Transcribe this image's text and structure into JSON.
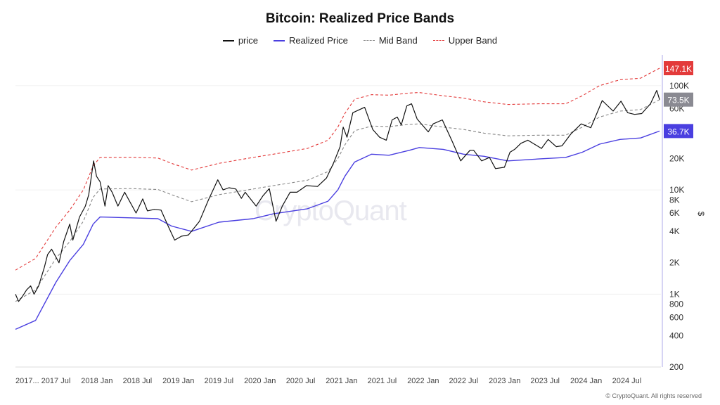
{
  "colors": {
    "price": "#111111",
    "realized": "#4a3fe0",
    "mid": "#888888",
    "upper": "#e33a3a",
    "axis_line": "#c9c6f0",
    "grid": "#f0f0f0"
  },
  "labels": {
    "price_tag": "73.5K",
    "upper_tag": "147.1K",
    "realized_tag": "36.7K",
    "y_unit": "$",
    "watermark": "CryptoQuant",
    "copyright": "© CryptoQuant. All rights reserved"
  },
  "chart_data": {
    "type": "line",
    "title": "Bitcoin: Realized Price Bands",
    "xlabel": "",
    "ylabel": "$",
    "y_scale": "log",
    "ylim": [
      200,
      180000
    ],
    "xlim": [
      "2017-01-01",
      "2024-12-01"
    ],
    "x_tick_labels": [
      "2017...",
      "2017 Jul",
      "2018 Jan",
      "2018 Jul",
      "2019 Jan",
      "2019 Jul",
      "2020 Jan",
      "2020 Jul",
      "2021 Jan",
      "2021 Jul",
      "2022 Jan",
      "2022 Jul",
      "2023 Jan",
      "2023 Jul",
      "2024 Jan",
      "2024 Jul"
    ],
    "y_ticks": [
      {
        "value": 200,
        "label": "200"
      },
      {
        "value": 400,
        "label": "400"
      },
      {
        "value": 600,
        "label": "600"
      },
      {
        "value": 800,
        "label": "800"
      },
      {
        "value": 1000,
        "label": "1K"
      },
      {
        "value": 2000,
        "label": "2K"
      },
      {
        "value": 4000,
        "label": "4K"
      },
      {
        "value": 6000,
        "label": "6K"
      },
      {
        "value": 8000,
        "label": "8K"
      },
      {
        "value": 10000,
        "label": "10K"
      },
      {
        "value": 20000,
        "label": "20K"
      },
      {
        "value": 60000,
        "label": "60K"
      },
      {
        "value": 100000,
        "label": "100K"
      }
    ],
    "legend_position": "top",
    "series": [
      {
        "name": "price",
        "style": "solid",
        "points": [
          [
            "2017-01-01",
            1000
          ],
          [
            "2017-01-15",
            850
          ],
          [
            "2017-02-01",
            950
          ],
          [
            "2017-02-20",
            1100
          ],
          [
            "2017-03-10",
            1200
          ],
          [
            "2017-03-25",
            1000
          ],
          [
            "2017-04-15",
            1200
          ],
          [
            "2017-05-10",
            1800
          ],
          [
            "2017-05-25",
            2400
          ],
          [
            "2017-06-12",
            2700
          ],
          [
            "2017-07-15",
            2000
          ],
          [
            "2017-08-05",
            3200
          ],
          [
            "2017-09-01",
            4700
          ],
          [
            "2017-09-15",
            3300
          ],
          [
            "2017-10-15",
            5500
          ],
          [
            "2017-11-10",
            7000
          ],
          [
            "2017-11-25",
            9000
          ],
          [
            "2017-12-17",
            19000
          ],
          [
            "2017-12-30",
            13500
          ],
          [
            "2018-01-15",
            12000
          ],
          [
            "2018-02-06",
            7000
          ],
          [
            "2018-02-20",
            11000
          ],
          [
            "2018-03-10",
            9500
          ],
          [
            "2018-04-05",
            7000
          ],
          [
            "2018-05-05",
            9500
          ],
          [
            "2018-06-25",
            6000
          ],
          [
            "2018-07-25",
            8200
          ],
          [
            "2018-08-15",
            6300
          ],
          [
            "2018-09-15",
            6500
          ],
          [
            "2018-10-15",
            6400
          ],
          [
            "2018-11-20",
            4300
          ],
          [
            "2018-12-15",
            3300
          ],
          [
            "2019-01-15",
            3600
          ],
          [
            "2019-02-15",
            3700
          ],
          [
            "2019-04-05",
            5000
          ],
          [
            "2019-05-15",
            8000
          ],
          [
            "2019-06-26",
            12500
          ],
          [
            "2019-07-20",
            10000
          ],
          [
            "2019-08-15",
            10500
          ],
          [
            "2019-09-15",
            10200
          ],
          [
            "2019-10-10",
            8300
          ],
          [
            "2019-10-27",
            9500
          ],
          [
            "2019-12-15",
            7000
          ],
          [
            "2020-01-15",
            8800
          ],
          [
            "2020-02-12",
            10300
          ],
          [
            "2020-03-13",
            5000
          ],
          [
            "2020-04-10",
            7000
          ],
          [
            "2020-05-15",
            9500
          ],
          [
            "2020-06-15",
            9500
          ],
          [
            "2020-07-27",
            11000
          ],
          [
            "2020-09-15",
            10800
          ],
          [
            "2020-10-25",
            13000
          ],
          [
            "2020-11-25",
            18000
          ],
          [
            "2020-12-25",
            26000
          ],
          [
            "2021-01-08",
            40000
          ],
          [
            "2021-01-25",
            32000
          ],
          [
            "2021-02-20",
            55000
          ],
          [
            "2021-03-15",
            58000
          ],
          [
            "2021-04-14",
            62000
          ],
          [
            "2021-05-20",
            38000
          ],
          [
            "2021-06-20",
            32000
          ],
          [
            "2021-07-20",
            30000
          ],
          [
            "2021-08-15",
            47000
          ],
          [
            "2021-09-07",
            50000
          ],
          [
            "2021-09-25",
            42000
          ],
          [
            "2021-10-20",
            64000
          ],
          [
            "2021-11-10",
            67000
          ],
          [
            "2021-12-05",
            48000
          ],
          [
            "2022-01-24",
            36000
          ],
          [
            "2022-02-15",
            43000
          ],
          [
            "2022-03-28",
            47000
          ],
          [
            "2022-05-12",
            29000
          ],
          [
            "2022-06-18",
            19000
          ],
          [
            "2022-07-30",
            24000
          ],
          [
            "2022-08-15",
            24000
          ],
          [
            "2022-09-20",
            19000
          ],
          [
            "2022-10-25",
            20500
          ],
          [
            "2022-11-21",
            16000
          ],
          [
            "2022-12-31",
            16500
          ],
          [
            "2023-01-25",
            23000
          ],
          [
            "2023-02-15",
            24500
          ],
          [
            "2023-03-15",
            28000
          ],
          [
            "2023-04-15",
            30000
          ],
          [
            "2023-06-15",
            25000
          ],
          [
            "2023-07-15",
            30500
          ],
          [
            "2023-08-20",
            26000
          ],
          [
            "2023-09-15",
            26500
          ],
          [
            "2023-10-25",
            34500
          ],
          [
            "2023-12-10",
            43000
          ],
          [
            "2024-01-22",
            39500
          ],
          [
            "2024-03-13",
            72000
          ],
          [
            "2024-05-01",
            57000
          ],
          [
            "2024-06-05",
            71000
          ],
          [
            "2024-07-05",
            55000
          ],
          [
            "2024-08-05",
            53000
          ],
          [
            "2024-09-06",
            54000
          ],
          [
            "2024-10-15",
            67000
          ],
          [
            "2024-11-12",
            90000
          ],
          [
            "2024-11-25",
            73500
          ]
        ]
      },
      {
        "name": "Realized Price",
        "style": "solid",
        "points": [
          [
            "2017-01-01",
            460
          ],
          [
            "2017-04-01",
            560
          ],
          [
            "2017-07-01",
            1300
          ],
          [
            "2017-09-01",
            2100
          ],
          [
            "2017-11-01",
            3000
          ],
          [
            "2017-12-15",
            4700
          ],
          [
            "2018-01-15",
            5500
          ],
          [
            "2018-06-01",
            5400
          ],
          [
            "2018-10-01",
            5300
          ],
          [
            "2018-12-01",
            4500
          ],
          [
            "2019-03-01",
            4000
          ],
          [
            "2019-07-01",
            4900
          ],
          [
            "2019-12-01",
            5300
          ],
          [
            "2020-03-01",
            5900
          ],
          [
            "2020-08-01",
            6600
          ],
          [
            "2020-11-01",
            7800
          ],
          [
            "2020-12-15",
            10000
          ],
          [
            "2021-01-15",
            13500
          ],
          [
            "2021-02-28",
            18500
          ],
          [
            "2021-05-15",
            22000
          ],
          [
            "2021-08-01",
            21500
          ],
          [
            "2021-11-01",
            24000
          ],
          [
            "2021-12-15",
            25500
          ],
          [
            "2022-04-01",
            24500
          ],
          [
            "2022-07-01",
            22000
          ],
          [
            "2022-10-01",
            21000
          ],
          [
            "2023-01-15",
            19000
          ],
          [
            "2023-06-01",
            19800
          ],
          [
            "2023-10-01",
            20500
          ],
          [
            "2023-12-15",
            23000
          ],
          [
            "2024-03-01",
            27500
          ],
          [
            "2024-06-01",
            30500
          ],
          [
            "2024-09-01",
            31500
          ],
          [
            "2024-11-25",
            36700
          ]
        ]
      },
      {
        "name": "Mid Band",
        "style": "dashed",
        "points": [
          [
            "2017-01-01",
            850
          ],
          [
            "2017-04-01",
            1100
          ],
          [
            "2017-07-01",
            2200
          ],
          [
            "2017-09-01",
            3200
          ],
          [
            "2017-11-01",
            5000
          ],
          [
            "2017-12-15",
            8500
          ],
          [
            "2018-01-15",
            10200
          ],
          [
            "2018-06-01",
            10300
          ],
          [
            "2018-10-01",
            10100
          ],
          [
            "2018-12-01",
            9000
          ],
          [
            "2019-03-01",
            7700
          ],
          [
            "2019-07-01",
            9000
          ],
          [
            "2019-12-01",
            10200
          ],
          [
            "2020-03-01",
            11000
          ],
          [
            "2020-08-01",
            12400
          ],
          [
            "2020-11-01",
            15000
          ],
          [
            "2020-12-15",
            20000
          ],
          [
            "2021-01-15",
            27000
          ],
          [
            "2021-02-28",
            37000
          ],
          [
            "2021-05-15",
            41000
          ],
          [
            "2021-08-01",
            40500
          ],
          [
            "2021-11-01",
            42500
          ],
          [
            "2021-12-15",
            43000
          ],
          [
            "2022-04-01",
            40000
          ],
          [
            "2022-07-01",
            38000
          ],
          [
            "2022-10-01",
            35000
          ],
          [
            "2023-01-15",
            33000
          ],
          [
            "2023-06-01",
            33500
          ],
          [
            "2023-10-01",
            33500
          ],
          [
            "2023-12-15",
            40000
          ],
          [
            "2024-03-01",
            50000
          ],
          [
            "2024-06-01",
            57000
          ],
          [
            "2024-09-01",
            59000
          ],
          [
            "2024-11-25",
            73500
          ]
        ]
      },
      {
        "name": "Upper Band",
        "style": "dashed",
        "points": [
          [
            "2017-01-01",
            1700
          ],
          [
            "2017-04-01",
            2200
          ],
          [
            "2017-07-01",
            4400
          ],
          [
            "2017-09-01",
            6400
          ],
          [
            "2017-11-01",
            10000
          ],
          [
            "2017-12-15",
            17000
          ],
          [
            "2018-01-15",
            20500
          ],
          [
            "2018-06-01",
            20600
          ],
          [
            "2018-10-01",
            20200
          ],
          [
            "2018-12-01",
            18000
          ],
          [
            "2019-03-01",
            15500
          ],
          [
            "2019-07-01",
            18000
          ],
          [
            "2019-12-01",
            20500
          ],
          [
            "2020-03-01",
            22000
          ],
          [
            "2020-08-01",
            25000
          ],
          [
            "2020-11-01",
            30000
          ],
          [
            "2020-12-15",
            40000
          ],
          [
            "2021-01-15",
            54000
          ],
          [
            "2021-02-28",
            74000
          ],
          [
            "2021-05-15",
            82000
          ],
          [
            "2021-08-01",
            81000
          ],
          [
            "2021-11-01",
            85000
          ],
          [
            "2021-12-15",
            86000
          ],
          [
            "2022-04-01",
            80000
          ],
          [
            "2022-07-01",
            76000
          ],
          [
            "2022-10-01",
            70000
          ],
          [
            "2023-01-15",
            66000
          ],
          [
            "2023-06-01",
            67000
          ],
          [
            "2023-10-01",
            67000
          ],
          [
            "2023-12-15",
            80000
          ],
          [
            "2024-03-01",
            100000
          ],
          [
            "2024-06-01",
            114000
          ],
          [
            "2024-09-01",
            118000
          ],
          [
            "2024-11-25",
            147100
          ]
        ]
      }
    ]
  }
}
